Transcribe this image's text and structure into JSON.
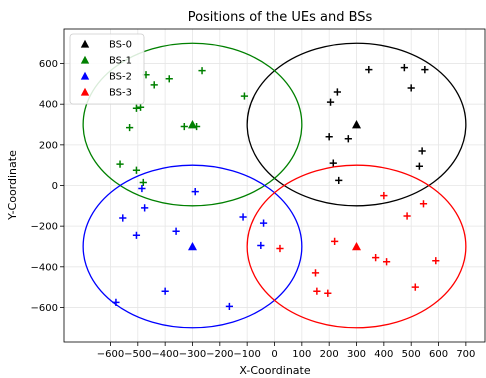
{
  "chart_data": {
    "type": "scatter",
    "title": "Positions of the UEs and BSs",
    "xlabel": "X-Coordinate",
    "ylabel": "Y-Coordinate",
    "xlim": [
      -770,
      770
    ],
    "ylim": [
      -770,
      770
    ],
    "xticks": [
      -600,
      -500,
      -400,
      -300,
      -200,
      -100,
      0,
      100,
      200,
      300,
      400,
      500,
      600,
      700
    ],
    "yticks": [
      -600,
      -400,
      -200,
      0,
      200,
      400,
      600
    ],
    "grid": true,
    "legend_position": "top-left",
    "coverage_radius": 400,
    "series": [
      {
        "name": "BS-0",
        "color": "#000000",
        "bs": [
          300,
          300
        ],
        "ues": [
          [
            345,
            570
          ],
          [
            475,
            580
          ],
          [
            550,
            570
          ],
          [
            500,
            480
          ],
          [
            230,
            460
          ],
          [
            205,
            410
          ],
          [
            200,
            240
          ],
          [
            270,
            230
          ],
          [
            540,
            170
          ],
          [
            215,
            110
          ],
          [
            530,
            95
          ],
          [
            235,
            25
          ]
        ]
      },
      {
        "name": "BS-1",
        "color": "#008000",
        "bs": [
          -300,
          300
        ],
        "ues": [
          [
            -265,
            565
          ],
          [
            -385,
            525
          ],
          [
            -470,
            545
          ],
          [
            -440,
            495
          ],
          [
            -505,
            380
          ],
          [
            -490,
            385
          ],
          [
            -110,
            440
          ],
          [
            -330,
            290
          ],
          [
            -285,
            290
          ],
          [
            -530,
            285
          ],
          [
            -565,
            105
          ],
          [
            -505,
            75
          ],
          [
            -480,
            15
          ]
        ]
      },
      {
        "name": "BS-2",
        "color": "#0000ff",
        "bs": [
          -300,
          -300
        ],
        "ues": [
          [
            -290,
            -30
          ],
          [
            -485,
            -15
          ],
          [
            -475,
            -110
          ],
          [
            -555,
            -160
          ],
          [
            -115,
            -155
          ],
          [
            -40,
            -185
          ],
          [
            -360,
            -225
          ],
          [
            -505,
            -245
          ],
          [
            -50,
            -295
          ],
          [
            -400,
            -520
          ],
          [
            -580,
            -575
          ],
          [
            -165,
            -595
          ]
        ]
      },
      {
        "name": "BS-3",
        "color": "#ff0000",
        "bs": [
          300,
          -300
        ],
        "ues": [
          [
            400,
            -50
          ],
          [
            545,
            -90
          ],
          [
            485,
            -150
          ],
          [
            220,
            -275
          ],
          [
            20,
            -310
          ],
          [
            370,
            -355
          ],
          [
            410,
            -375
          ],
          [
            590,
            -370
          ],
          [
            150,
            -430
          ],
          [
            515,
            -500
          ],
          [
            155,
            -520
          ],
          [
            195,
            -530
          ]
        ]
      }
    ]
  }
}
